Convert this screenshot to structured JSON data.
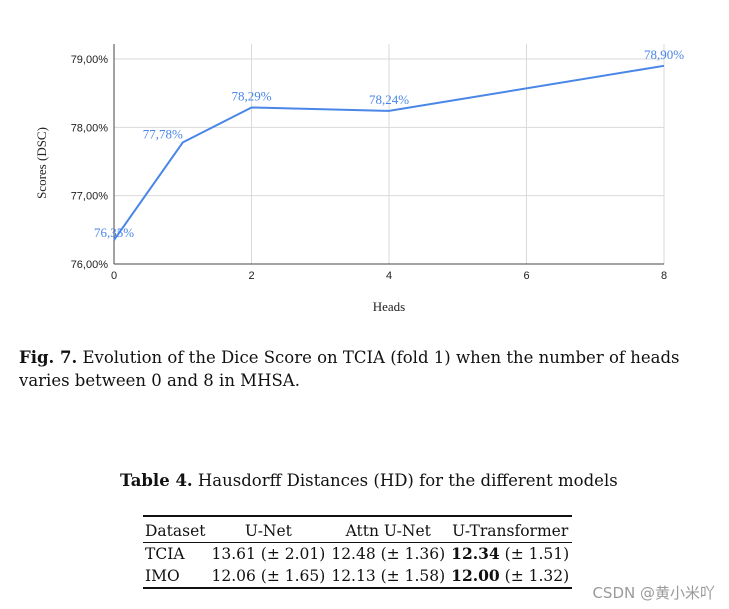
{
  "chart_data": {
    "type": "line",
    "title": "",
    "xlabel": "Heads",
    "ylabel": "Scores (DSC)",
    "xlim": [
      0,
      8
    ],
    "ylim": [
      76,
      79.2
    ],
    "xticks": [
      "0",
      "2",
      "4",
      "6",
      "8"
    ],
    "yticks": [
      "76,00%",
      "77,00%",
      "78,00%",
      "79,00%"
    ],
    "grid": true,
    "series": [
      {
        "x": [
          0,
          1,
          2,
          4,
          8
        ],
        "y": [
          76.35,
          77.78,
          78.29,
          78.24,
          78.9
        ],
        "labels": [
          "76,35%",
          "77,78%",
          "78,29%",
          "78,24%",
          "78,90%"
        ],
        "color": "#4a86e8"
      }
    ]
  },
  "figure_caption": {
    "label": "Fig. 7.",
    "text": "Evolution of the Dice Score on TCIA (fold 1) when the number of heads varies between 0 and 8 in MHSA."
  },
  "table_caption": {
    "label": "Table 4.",
    "text": "Hausdorff Distances (HD) for the different models"
  },
  "table": {
    "headers": [
      "Dataset",
      "U-Net",
      "Attn U-Net",
      "U-Transformer"
    ],
    "rows": [
      {
        "dataset": "TCIA",
        "unet": "13.61 (± 2.01)",
        "attn": "12.48 (± 1.36)",
        "ut_best": "12.34",
        "ut_rest": "(± 1.51)"
      },
      {
        "dataset": "IMO",
        "unet": "12.06 (± 1.65)",
        "attn": "12.13 (± 1.58)",
        "ut_best": "12.00",
        "ut_rest": "(± 1.32)"
      }
    ]
  },
  "watermark": "CSDN @黄小米吖"
}
